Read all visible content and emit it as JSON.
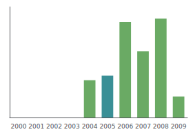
{
  "chart_data": {
    "type": "bar",
    "categories": [
      "2000",
      "2001",
      "2002",
      "2003",
      "2004",
      "2005",
      "2006",
      "2007",
      "2008",
      "2009"
    ],
    "values": [
      0,
      0,
      0,
      0,
      32,
      36,
      82,
      57,
      85,
      18
    ],
    "colors": [
      "#6aaa64",
      "#6aaa64",
      "#6aaa64",
      "#6aaa64",
      "#6aaa64",
      "#3a8f96",
      "#6aaa64",
      "#6aaa64",
      "#6aaa64",
      "#6aaa64"
    ],
    "ylim": [
      0,
      95
    ],
    "grid": false,
    "tick_labels": "x"
  }
}
